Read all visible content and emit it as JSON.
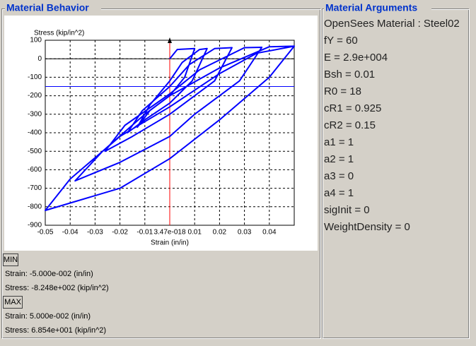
{
  "left_panel": {
    "title": "Material Behavior",
    "min": {
      "button": "MIN",
      "strain": "Strain: -5.000e-002 (in/in)",
      "stress": "Stress: -8.248e+002 (kip/in^2)"
    },
    "max": {
      "button": "MAX",
      "strain": "Strain: 5.000e-002 (in/in)",
      "stress": "Stress: 6.854e+001 (kip/in^2)"
    }
  },
  "right_panel": {
    "title": "Material Arguments",
    "lines": [
      "OpenSees Material : Steel02",
      "fY = 60",
      "E = 2.9e+004",
      "Bsh = 0.01",
      "R0 = 18",
      "cR1 = 0.925",
      "cR2 = 0.15",
      "a1 = 1",
      "a2 = 1",
      "a3 = 0",
      "a4 = 1",
      "sigInit = 0",
      "WeightDensity = 0"
    ]
  },
  "chart_data": {
    "type": "line",
    "y_label": "Stress (kip/in^2)",
    "x_label": "Strain (in/in)",
    "x": [
      0,
      0.003,
      0.01,
      0.006,
      0,
      -0.008,
      -0.013,
      -0.008,
      0,
      0.005,
      0.012,
      0.015,
      0.009,
      0,
      -0.01,
      -0.017,
      -0.011,
      0,
      0.008,
      0.018,
      0.025,
      0.018,
      0,
      -0.015,
      -0.026,
      -0.018,
      0,
      0.012,
      0.03,
      0.037,
      0.028,
      0.01,
      0,
      -0.02,
      -0.038,
      -0.027,
      -0.01,
      0,
      0.02,
      0.04,
      0.05,
      0.04,
      0.02,
      0,
      -0.02,
      -0.05,
      -0.04,
      -0.02,
      0,
      0.02,
      0.035,
      0.05
    ],
    "series": [
      {
        "color": "#0000ff",
        "values": [
          0,
          50,
          55,
          -100,
          -200,
          -280,
          -370,
          -250,
          -120,
          -20,
          50,
          55,
          -120,
          -240,
          -330,
          -400,
          -280,
          -150,
          -30,
          55,
          60,
          -120,
          -300,
          -420,
          -500,
          -360,
          -190,
          -60,
          60,
          62,
          -120,
          -300,
          -420,
          -560,
          -660,
          -500,
          -300,
          -200,
          -50,
          65,
          68,
          -100,
          -330,
          -540,
          -700,
          -820,
          -650,
          -420,
          -260,
          -80,
          30,
          68
        ]
      }
    ],
    "xlim": [
      -0.05,
      0.05
    ],
    "ylim": [
      -900,
      100
    ],
    "xticks": [
      -0.05,
      -0.04,
      -0.03,
      -0.02,
      -0.01,
      {
        "value": 3.47e-18,
        "label": "3.47e-018"
      },
      0.01,
      0.02,
      0.03,
      0.04
    ],
    "yticks": [
      100,
      0,
      -100,
      -200,
      -300,
      -400,
      -500,
      -600,
      -700,
      -800,
      -900
    ],
    "grid": true,
    "hline": {
      "value": -150,
      "color": "#0000ff"
    },
    "vline": {
      "value": 0,
      "color": "#ff0000"
    }
  }
}
